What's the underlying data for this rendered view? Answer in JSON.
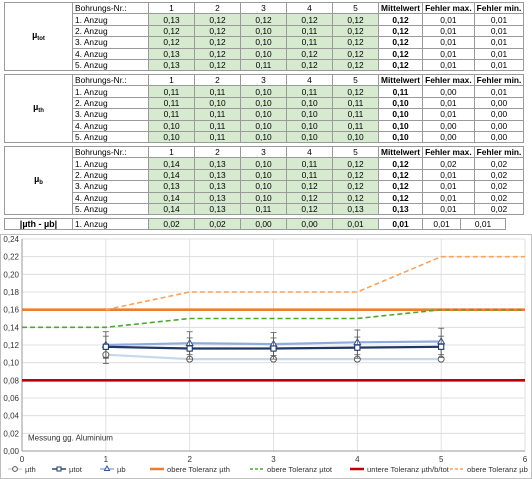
{
  "tables": [
    {
      "label": "µ",
      "label_sub": "tot",
      "header": {
        "title": "Bohrungs-Nr.:",
        "cols": [
          "1",
          "2",
          "3",
          "4",
          "5"
        ],
        "stats": [
          "Mittelwert",
          "Fehler max.",
          "Fehler min."
        ]
      },
      "rows": [
        {
          "name": "1. Anzug",
          "vals": [
            "0,13",
            "0,12",
            "0,12",
            "0,12",
            "0,12"
          ],
          "stats": [
            "0,12",
            "0,01",
            "0,01"
          ]
        },
        {
          "name": "2. Anzug",
          "vals": [
            "0,12",
            "0,12",
            "0,10",
            "0,11",
            "0,12"
          ],
          "stats": [
            "0,12",
            "0,01",
            "0,01"
          ]
        },
        {
          "name": "3. Anzug",
          "vals": [
            "0,12",
            "0,12",
            "0,10",
            "0,11",
            "0,12"
          ],
          "stats": [
            "0,12",
            "0,01",
            "0,01"
          ]
        },
        {
          "name": "4. Anzug",
          "vals": [
            "0,13",
            "0,12",
            "0,10",
            "0,12",
            "0,12"
          ],
          "stats": [
            "0,12",
            "0,01",
            "0,01"
          ]
        },
        {
          "name": "5. Anzug",
          "vals": [
            "0,13",
            "0,12",
            "0,11",
            "0,12",
            "0,12"
          ],
          "stats": [
            "0,12",
            "0,01",
            "0,01"
          ]
        }
      ]
    },
    {
      "label": "µ",
      "label_sub": "th",
      "header": {
        "title": "Bohrungs-Nr.:",
        "cols": [
          "1",
          "2",
          "3",
          "4",
          "5"
        ],
        "stats": [
          "Mittelwert",
          "Fehler max.",
          "Fehler min."
        ]
      },
      "rows": [
        {
          "name": "1. Anzug",
          "vals": [
            "0,11",
            "0,11",
            "0,10",
            "0,11",
            "0,12"
          ],
          "stats": [
            "0,11",
            "0,00",
            "0,01"
          ]
        },
        {
          "name": "2. Anzug",
          "vals": [
            "0,11",
            "0,10",
            "0,10",
            "0,10",
            "0,11"
          ],
          "stats": [
            "0,10",
            "0,01",
            "0,00"
          ]
        },
        {
          "name": "3. Anzug",
          "vals": [
            "0,11",
            "0,11",
            "0,10",
            "0,10",
            "0,11"
          ],
          "stats": [
            "0,10",
            "0,01",
            "0,00"
          ]
        },
        {
          "name": "4. Anzug",
          "vals": [
            "0,10",
            "0,11",
            "0,10",
            "0,10",
            "0,11"
          ],
          "stats": [
            "0,10",
            "0,00",
            "0,00"
          ]
        },
        {
          "name": "5. Anzug",
          "vals": [
            "0,10",
            "0,11",
            "0,10",
            "0,10",
            "0,10"
          ],
          "stats": [
            "0,10",
            "0,00",
            "0,00"
          ]
        }
      ]
    },
    {
      "label": "µ",
      "label_sub": "b",
      "header": {
        "title": "Bohrungs-Nr.:",
        "cols": [
          "1",
          "2",
          "3",
          "4",
          "5"
        ],
        "stats": [
          "Mittelwert",
          "Fehler max.",
          "Fehler min."
        ]
      },
      "rows": [
        {
          "name": "1. Anzug",
          "vals": [
            "0,14",
            "0,13",
            "0,10",
            "0,11",
            "0,12"
          ],
          "stats": [
            "0,12",
            "0,02",
            "0,02"
          ]
        },
        {
          "name": "2. Anzug",
          "vals": [
            "0,14",
            "0,13",
            "0,10",
            "0,11",
            "0,12"
          ],
          "stats": [
            "0,12",
            "0,01",
            "0,02"
          ]
        },
        {
          "name": "3. Anzug",
          "vals": [
            "0,13",
            "0,13",
            "0,10",
            "0,12",
            "0,12"
          ],
          "stats": [
            "0,12",
            "0,01",
            "0,02"
          ]
        },
        {
          "name": "4. Anzug",
          "vals": [
            "0,14",
            "0,13",
            "0,10",
            "0,12",
            "0,12"
          ],
          "stats": [
            "0,12",
            "0,01",
            "0,02"
          ]
        },
        {
          "name": "5. Anzug",
          "vals": [
            "0,14",
            "0,13",
            "0,11",
            "0,12",
            "0,13"
          ],
          "stats": [
            "0,13",
            "0,01",
            "0,02"
          ]
        }
      ]
    }
  ],
  "diff_row": {
    "label": "|µth - µb|",
    "name": "1. Anzug",
    "vals": [
      "0,02",
      "0,02",
      "0,00",
      "0,00",
      "0,01"
    ],
    "stats": [
      "0,01",
      "0,01",
      "0,01"
    ]
  },
  "chart_data": {
    "type": "line",
    "annotation": "Messung gg. Aluminium",
    "x": [
      1,
      2,
      3,
      4,
      5
    ],
    "xlim": [
      0,
      6
    ],
    "ylim": [
      0,
      0.24
    ],
    "yticks": [
      "0,00",
      "0,02",
      "0,04",
      "0,06",
      "0,08",
      "0,10",
      "0,12",
      "0,14",
      "0,16",
      "0,18",
      "0,20",
      "0,22",
      "0,24"
    ],
    "xticks": [
      "0",
      "1",
      "2",
      "3",
      "4",
      "5",
      "6"
    ],
    "grid": true,
    "legend_position": "bottom",
    "series": [
      {
        "name": "µth",
        "values": [
          0.109,
          0.104,
          0.104,
          0.104,
          0.104
        ],
        "err": [
          0.01,
          0.0,
          0.0,
          0.0,
          0.0
        ],
        "color": "#c5d8ec",
        "marker": "circle"
      },
      {
        "name": "µtot",
        "values": [
          0.118,
          0.116,
          0.116,
          0.117,
          0.118
        ],
        "err": [
          0.012,
          0.012,
          0.012,
          0.012,
          0.012
        ],
        "color": "#203864",
        "marker": "square"
      },
      {
        "name": "µb",
        "values": [
          0.12,
          0.122,
          0.121,
          0.123,
          0.124
        ],
        "err": [
          0.015,
          0.013,
          0.013,
          0.014,
          0.015
        ],
        "color": "#8faadc",
        "marker": "triangle"
      },
      {
        "name": "obere Toleranz µth",
        "values": [
          0.16,
          0.16,
          0.16,
          0.16,
          0.16
        ],
        "color": "#ed7d31",
        "style": "solid"
      },
      {
        "name": "obere Toleranz  µtot",
        "values": [
          0.14,
          0.15,
          0.15,
          0.15,
          0.16
        ],
        "color": "#4ea72e",
        "style": "dashed"
      },
      {
        "name": "untere Toleranz µth/b/tot",
        "values": [
          0.08,
          0.08,
          0.08,
          0.08,
          0.08
        ],
        "color": "#c00000",
        "style": "solid"
      },
      {
        "name": "obere Toleranz  µb",
        "values": [
          0.16,
          0.18,
          0.18,
          0.18,
          0.22
        ],
        "color": "#f4a460",
        "style": "dashed"
      }
    ]
  }
}
